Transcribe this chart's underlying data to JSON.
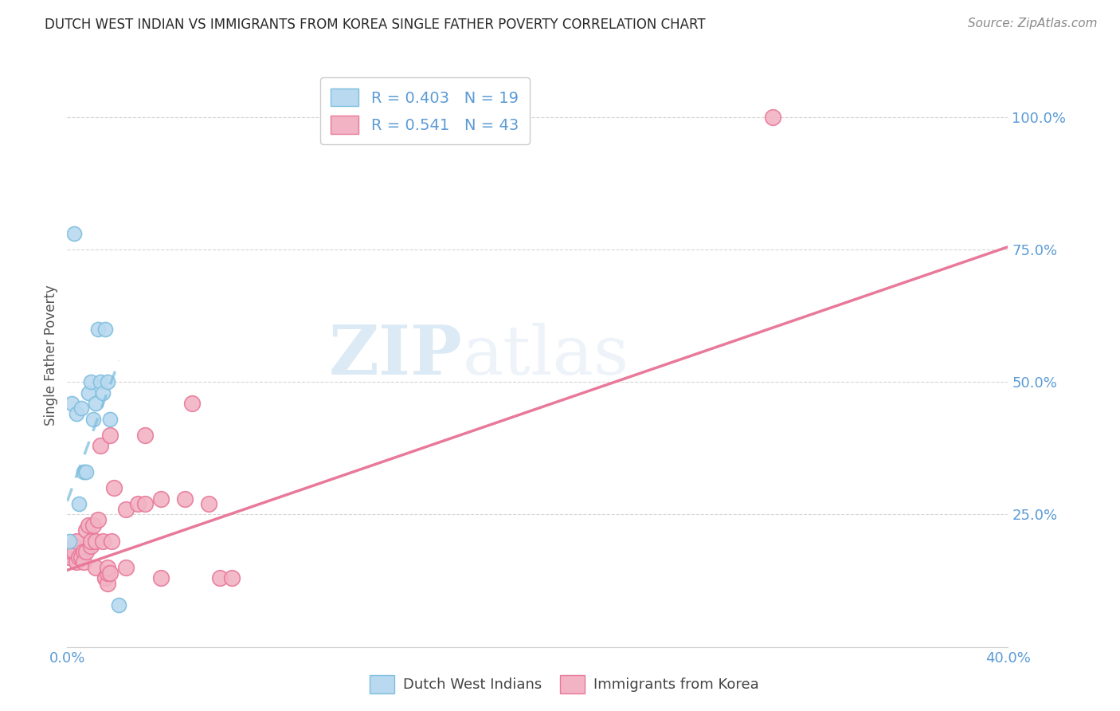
{
  "title": "DUTCH WEST INDIAN VS IMMIGRANTS FROM KOREA SINGLE FATHER POVERTY CORRELATION CHART",
  "source": "Source: ZipAtlas.com",
  "ylabel": "Single Father Poverty",
  "yticks_labels": [
    "100.0%",
    "75.0%",
    "50.0%",
    "25.0%"
  ],
  "ytick_values": [
    1.0,
    0.75,
    0.5,
    0.25
  ],
  "legend1_r": "0.403",
  "legend1_n": "19",
  "legend2_r": "0.541",
  "legend2_n": "43",
  "blue_color": "#7fbfdf",
  "blue_fill": "#b8d9ef",
  "pink_color": "#e8799a",
  "pink_fill": "#f2b3c4",
  "legend_label1": "Dutch West Indians",
  "legend_label2": "Immigrants from Korea",
  "watermark_zip": "ZIP",
  "watermark_atlas": "atlas",
  "blue_points_x": [
    0.001,
    0.002,
    0.003,
    0.004,
    0.005,
    0.006,
    0.007,
    0.008,
    0.009,
    0.01,
    0.011,
    0.012,
    0.013,
    0.014,
    0.015,
    0.016,
    0.017,
    0.018,
    0.022
  ],
  "blue_points_y": [
    0.2,
    0.46,
    0.78,
    0.44,
    0.27,
    0.45,
    0.33,
    0.33,
    0.48,
    0.5,
    0.43,
    0.46,
    0.6,
    0.5,
    0.48,
    0.6,
    0.5,
    0.43,
    0.08
  ],
  "pink_points_x": [
    0.001,
    0.002,
    0.003,
    0.003,
    0.004,
    0.004,
    0.005,
    0.006,
    0.007,
    0.007,
    0.008,
    0.008,
    0.009,
    0.01,
    0.01,
    0.011,
    0.012,
    0.012,
    0.013,
    0.014,
    0.015,
    0.016,
    0.016,
    0.017,
    0.017,
    0.017,
    0.018,
    0.018,
    0.019,
    0.02,
    0.025,
    0.025,
    0.03,
    0.033,
    0.033,
    0.04,
    0.04,
    0.05,
    0.053,
    0.06,
    0.065,
    0.07,
    0.3
  ],
  "pink_points_y": [
    0.17,
    0.18,
    0.19,
    0.18,
    0.2,
    0.16,
    0.17,
    0.17,
    0.18,
    0.16,
    0.18,
    0.22,
    0.23,
    0.19,
    0.2,
    0.23,
    0.2,
    0.15,
    0.24,
    0.38,
    0.2,
    0.13,
    0.13,
    0.12,
    0.14,
    0.15,
    0.14,
    0.4,
    0.2,
    0.3,
    0.26,
    0.15,
    0.27,
    0.4,
    0.27,
    0.28,
    0.13,
    0.28,
    0.46,
    0.27,
    0.13,
    0.13,
    1.0
  ],
  "pink_line_x0": 0.0,
  "pink_line_x1": 0.4,
  "pink_line_y0": 0.145,
  "pink_line_y1": 0.755,
  "blue_line_x0": 0.0,
  "blue_line_x1": 0.022,
  "blue_line_y0": 0.275,
  "blue_line_y1": 0.54,
  "xmin": 0.0,
  "xmax": 0.4,
  "ymin": 0.0,
  "ymax": 1.1,
  "title_color": "#2a2a2a",
  "axis_label_color": "#5b9bd5",
  "ylabel_color": "#555555",
  "grid_color": "#cccccc",
  "background_color": "#ffffff"
}
